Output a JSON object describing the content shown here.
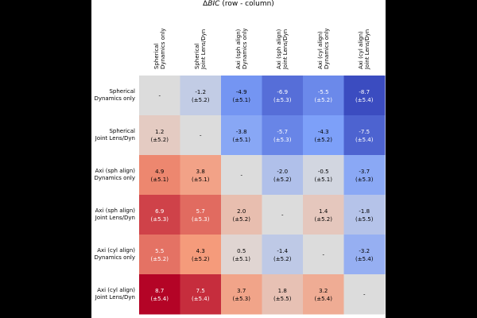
{
  "chart_data": {
    "type": "heatmap",
    "title_prefix": "Δ",
    "title_italic": "BIC",
    "title_suffix": " (row - column)",
    "row_labels": [
      [
        "Spherical",
        "Dynamics only"
      ],
      [
        "Spherical",
        "Joint Lens/Dyn"
      ],
      [
        "Axi (sph align)",
        "Dynamics only"
      ],
      [
        "Axi (sph align)",
        "Joint Lens/Dyn"
      ],
      [
        "Axi (cyl align)",
        "Dynamics only"
      ],
      [
        "Axi (cyl align)",
        "Joint Lens/Dyn"
      ]
    ],
    "column_labels": [
      [
        "Spherical",
        "Dynamics only"
      ],
      [
        "Spherical",
        "Joint Lens/Dyn"
      ],
      [
        "Axi (sph align)",
        "Dynamics only"
      ],
      [
        "Axi (sph align)",
        "Joint Lens/Dyn"
      ],
      [
        "Axi (cyl align)",
        "Dynamics only"
      ],
      [
        "Axi (cyl align)",
        "Joint Lens/Dyn"
      ]
    ],
    "values": [
      [
        null,
        -1.2,
        -4.9,
        -6.9,
        -5.5,
        -8.7
      ],
      [
        1.2,
        null,
        -3.8,
        -5.7,
        -4.3,
        -7.5
      ],
      [
        4.9,
        3.8,
        null,
        -2.0,
        -0.5,
        -3.7
      ],
      [
        6.9,
        5.7,
        2.0,
        null,
        1.4,
        -1.8
      ],
      [
        5.5,
        4.3,
        0.5,
        -1.4,
        null,
        -3.2
      ],
      [
        8.7,
        7.5,
        3.7,
        1.8,
        3.2,
        null
      ]
    ],
    "errors": [
      [
        null,
        5.2,
        5.1,
        5.3,
        5.2,
        5.4
      ],
      [
        5.2,
        null,
        5.1,
        5.3,
        5.2,
        5.4
      ],
      [
        5.1,
        5.1,
        null,
        5.2,
        5.1,
        5.3
      ],
      [
        5.3,
        5.3,
        5.2,
        null,
        5.2,
        5.5
      ],
      [
        5.2,
        5.2,
        5.1,
        5.2,
        null,
        5.4
      ],
      [
        5.4,
        5.4,
        5.3,
        5.5,
        5.4,
        null
      ]
    ],
    "diagonal_label": "-",
    "colormap": "coolwarm",
    "vlim": [
      -8.7,
      8.7
    ],
    "diagonal_color": "#dcdcdc"
  }
}
